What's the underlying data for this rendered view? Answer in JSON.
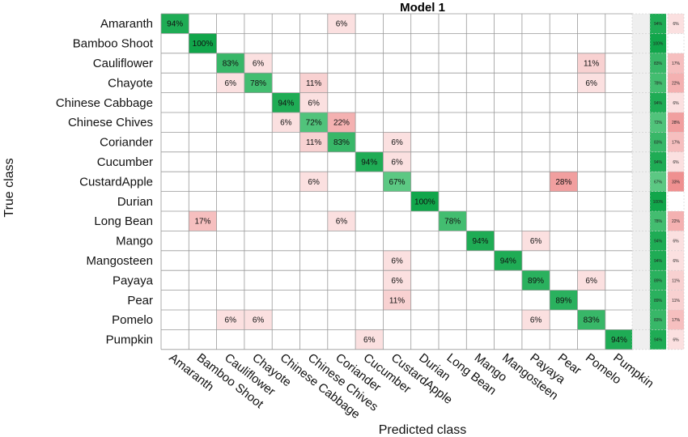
{
  "chart_data": {
    "type": "heatmap",
    "title": "Model 1",
    "xlabel": "Predicted class",
    "ylabel": "True class",
    "classes": [
      "Amaranth",
      "Bamboo Shoot",
      "Cauliflower",
      "Chayote",
      "Chinese Cabbage",
      "Chinese Chives",
      "Coriander",
      "Cucumber",
      "CustardApple",
      "Durian",
      "Long Bean",
      "Mango",
      "Mangosteen",
      "Payaya",
      "Pear",
      "Pomelo",
      "Pumpkin"
    ],
    "cells": [
      {
        "row": 0,
        "col": 0,
        "value": 94
      },
      {
        "row": 0,
        "col": 6,
        "value": 6
      },
      {
        "row": 1,
        "col": 1,
        "value": 100
      },
      {
        "row": 2,
        "col": 2,
        "value": 83
      },
      {
        "row": 2,
        "col": 3,
        "value": 6
      },
      {
        "row": 2,
        "col": 15,
        "value": 11
      },
      {
        "row": 3,
        "col": 2,
        "value": 6
      },
      {
        "row": 3,
        "col": 3,
        "value": 78
      },
      {
        "row": 3,
        "col": 5,
        "value": 11
      },
      {
        "row": 3,
        "col": 15,
        "value": 6
      },
      {
        "row": 4,
        "col": 4,
        "value": 94
      },
      {
        "row": 4,
        "col": 5,
        "value": 6
      },
      {
        "row": 5,
        "col": 4,
        "value": 6
      },
      {
        "row": 5,
        "col": 5,
        "value": 72
      },
      {
        "row": 5,
        "col": 6,
        "value": 22
      },
      {
        "row": 6,
        "col": 5,
        "value": 11
      },
      {
        "row": 6,
        "col": 6,
        "value": 83
      },
      {
        "row": 6,
        "col": 8,
        "value": 6
      },
      {
        "row": 7,
        "col": 7,
        "value": 94
      },
      {
        "row": 7,
        "col": 8,
        "value": 6
      },
      {
        "row": 8,
        "col": 5,
        "value": 6
      },
      {
        "row": 8,
        "col": 8,
        "value": 67
      },
      {
        "row": 8,
        "col": 14,
        "value": 28
      },
      {
        "row": 9,
        "col": 9,
        "value": 100
      },
      {
        "row": 10,
        "col": 1,
        "value": 17
      },
      {
        "row": 10,
        "col": 6,
        "value": 6
      },
      {
        "row": 10,
        "col": 10,
        "value": 78
      },
      {
        "row": 11,
        "col": 11,
        "value": 94
      },
      {
        "row": 11,
        "col": 13,
        "value": 6
      },
      {
        "row": 12,
        "col": 8,
        "value": 6
      },
      {
        "row": 12,
        "col": 12,
        "value": 94
      },
      {
        "row": 13,
        "col": 8,
        "value": 6
      },
      {
        "row": 13,
        "col": 13,
        "value": 89
      },
      {
        "row": 13,
        "col": 15,
        "value": 6
      },
      {
        "row": 14,
        "col": 8,
        "value": 11
      },
      {
        "row": 14,
        "col": 14,
        "value": 89
      },
      {
        "row": 15,
        "col": 2,
        "value": 6
      },
      {
        "row": 15,
        "col": 3,
        "value": 6
      },
      {
        "row": 15,
        "col": 13,
        "value": 6
      },
      {
        "row": 15,
        "col": 15,
        "value": 83
      },
      {
        "row": 16,
        "col": 7,
        "value": 6
      },
      {
        "row": 16,
        "col": 16,
        "value": 94
      }
    ],
    "row_summary": [
      {
        "correct": 94,
        "incorrect": 6
      },
      {
        "correct": 100,
        "incorrect": null
      },
      {
        "correct": 83,
        "incorrect": 17
      },
      {
        "correct": 78,
        "incorrect": 22
      },
      {
        "correct": 94,
        "incorrect": 6
      },
      {
        "correct": 72,
        "incorrect": 28
      },
      {
        "correct": 83,
        "incorrect": 17
      },
      {
        "correct": 94,
        "incorrect": 6
      },
      {
        "correct": 67,
        "incorrect": 33
      },
      {
        "correct": 100,
        "incorrect": null
      },
      {
        "correct": 78,
        "incorrect": 22
      },
      {
        "correct": 94,
        "incorrect": 6
      },
      {
        "correct": 94,
        "incorrect": 6
      },
      {
        "correct": 89,
        "incorrect": 11
      },
      {
        "correct": 89,
        "incorrect": 11
      },
      {
        "correct": 83,
        "incorrect": 17
      },
      {
        "correct": 94,
        "incorrect": 6
      }
    ],
    "colors": {
      "diagonal_high": "#11a64b",
      "diagonal_low": "#6ccf8f",
      "offdiag_low": "#fbe3e3",
      "offdiag_high": "#ee8a8a",
      "grid": "#999999",
      "summary_bg": "#efefef"
    }
  }
}
